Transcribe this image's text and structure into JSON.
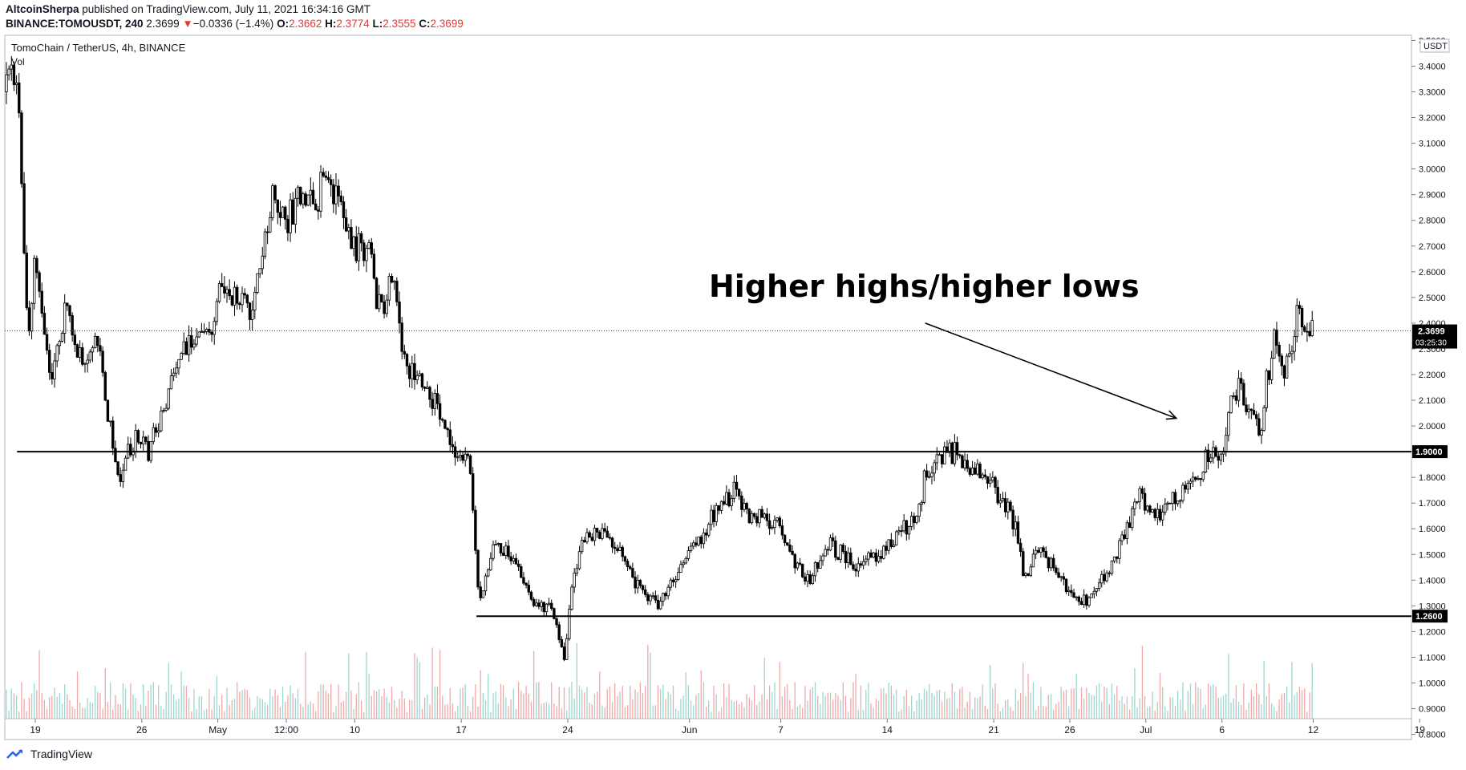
{
  "header": {
    "author": "AltcoinSherpa",
    "published_text": "published on TradingView.com, July 11, 2021 16:34:16 GMT",
    "symbol": "BINANCE:TOMOUSDT, 240",
    "last": "2.3699",
    "change_arrow": "▼",
    "change": "−0.0336 (−1.4%)",
    "o_label": "O:",
    "o_value": "2.3662",
    "h_label": "H:",
    "h_value": "2.3774",
    "l_label": "L:",
    "l_value": "2.3555",
    "c_label": "C:",
    "c_value": "2.3699"
  },
  "footer": {
    "brand": "TradingView"
  },
  "chart_data": {
    "type": "candlestick",
    "title": "TomoChain / TetherUS, 4h, BINANCE",
    "volume_label": "Vol",
    "currency_label": "USDT",
    "y_axis": {
      "ylim": [
        0.78,
        3.52
      ],
      "ticks": [
        "3.5000",
        "3.4000",
        "3.3000",
        "3.2000",
        "3.1000",
        "3.0000",
        "2.9000",
        "2.8000",
        "2.7000",
        "2.6000",
        "2.5000",
        "2.4000",
        "2.3000",
        "2.2000",
        "2.1000",
        "2.0000",
        "1.9000",
        "1.8000",
        "1.7000",
        "1.6000",
        "1.5000",
        "1.4000",
        "1.3000",
        "1.2000",
        "1.1000",
        "1.0000",
        "0.9000",
        "0.8000"
      ]
    },
    "x_axis": {
      "ticks": [
        {
          "label": "19",
          "day": 0
        },
        {
          "label": "26",
          "day": 7
        },
        {
          "label": "May",
          "day": 12
        },
        {
          "label": "12:00",
          "day": 16.5
        },
        {
          "label": "10",
          "day": 21
        },
        {
          "label": "17",
          "day": 28
        },
        {
          "label": "24",
          "day": 35
        },
        {
          "label": "Jun",
          "day": 43
        },
        {
          "label": "7",
          "day": 49
        },
        {
          "label": "14",
          "day": 56
        },
        {
          "label": "21",
          "day": 63
        },
        {
          "label": "26",
          "day": 68
        },
        {
          "label": "Jul",
          "day": 73
        },
        {
          "label": "6",
          "day": 78
        },
        {
          "label": "12",
          "day": 84
        },
        {
          "label": "19",
          "day": 91
        }
      ]
    },
    "price_path": [
      [
        -1.9,
        3.3
      ],
      [
        -1.5,
        3.38
      ],
      [
        -1.0,
        3.2
      ],
      [
        -0.7,
        2.55
      ],
      [
        -0.4,
        2.4
      ],
      [
        0.0,
        2.7
      ],
      [
        0.5,
        2.45
      ],
      [
        1.0,
        2.2
      ],
      [
        2.0,
        2.45
      ],
      [
        3.0,
        2.25
      ],
      [
        4.0,
        2.35
      ],
      [
        5.0,
        1.95
      ],
      [
        5.5,
        1.8
      ],
      [
        6.5,
        1.95
      ],
      [
        7.5,
        1.9
      ],
      [
        8.5,
        2.1
      ],
      [
        9.5,
        2.25
      ],
      [
        10.5,
        2.35
      ],
      [
        11.5,
        2.35
      ],
      [
        12.3,
        2.55
      ],
      [
        13.0,
        2.5
      ],
      [
        14.0,
        2.45
      ],
      [
        14.8,
        2.6
      ],
      [
        15.5,
        2.9
      ],
      [
        16.5,
        2.8
      ],
      [
        17.5,
        2.9
      ],
      [
        18.5,
        2.85
      ],
      [
        19.0,
        3.0
      ],
      [
        20.0,
        2.85
      ],
      [
        21.0,
        2.7
      ],
      [
        22.0,
        2.7
      ],
      [
        22.5,
        2.45
      ],
      [
        23.5,
        2.55
      ],
      [
        24.5,
        2.2
      ],
      [
        25.5,
        2.2
      ],
      [
        26.5,
        2.05
      ],
      [
        27.5,
        1.9
      ],
      [
        28.5,
        1.9
      ],
      [
        29.0,
        1.45
      ],
      [
        29.3,
        1.3
      ],
      [
        30.0,
        1.52
      ],
      [
        31.0,
        1.52
      ],
      [
        32.0,
        1.4
      ],
      [
        33.0,
        1.28
      ],
      [
        34.0,
        1.3
      ],
      [
        34.8,
        1.08
      ],
      [
        35.3,
        1.4
      ],
      [
        36.0,
        1.55
      ],
      [
        37.0,
        1.6
      ],
      [
        38.0,
        1.55
      ],
      [
        39.0,
        1.45
      ],
      [
        40.0,
        1.33
      ],
      [
        41.0,
        1.3
      ],
      [
        42.0,
        1.42
      ],
      [
        43.0,
        1.5
      ],
      [
        44.5,
        1.65
      ],
      [
        46.0,
        1.75
      ],
      [
        47.0,
        1.65
      ],
      [
        48.0,
        1.65
      ],
      [
        49.0,
        1.6
      ],
      [
        50.0,
        1.45
      ],
      [
        51.0,
        1.4
      ],
      [
        52.0,
        1.55
      ],
      [
        53.0,
        1.5
      ],
      [
        54.0,
        1.45
      ],
      [
        55.0,
        1.5
      ],
      [
        56.0,
        1.52
      ],
      [
        57.0,
        1.6
      ],
      [
        58.0,
        1.65
      ],
      [
        58.5,
        1.82
      ],
      [
        59.5,
        1.88
      ],
      [
        60.5,
        1.9
      ],
      [
        61.5,
        1.82
      ],
      [
        62.5,
        1.8
      ],
      [
        63.5,
        1.72
      ],
      [
        64.5,
        1.6
      ],
      [
        65.0,
        1.4
      ],
      [
        65.8,
        1.52
      ],
      [
        66.5,
        1.48
      ],
      [
        67.5,
        1.4
      ],
      [
        68.5,
        1.3
      ],
      [
        69.5,
        1.35
      ],
      [
        70.5,
        1.42
      ],
      [
        71.5,
        1.55
      ],
      [
        72.5,
        1.75
      ],
      [
        73.5,
        1.65
      ],
      [
        74.5,
        1.7
      ],
      [
        75.5,
        1.75
      ],
      [
        76.5,
        1.8
      ],
      [
        77.0,
        1.9
      ],
      [
        78.0,
        1.88
      ],
      [
        78.5,
        2.05
      ],
      [
        79.0,
        2.15
      ],
      [
        80.0,
        2.05
      ],
      [
        80.5,
        1.95
      ],
      [
        81.0,
        2.2
      ],
      [
        81.5,
        2.35
      ],
      [
        82.0,
        2.2
      ],
      [
        82.5,
        2.3
      ],
      [
        83.0,
        2.45
      ],
      [
        83.6,
        2.35
      ],
      [
        84.0,
        2.37
      ]
    ],
    "horizontal_levels": [
      {
        "value": 1.9,
        "label": "1.9000",
        "from_day": -1.2
      },
      {
        "value": 1.26,
        "label": "1.2600",
        "from_day": 29.0
      }
    ],
    "last_price": {
      "label": "2.3699",
      "countdown": "03:25:30",
      "value": 2.3699
    },
    "annotation": {
      "text": "Higher highs/higher lows",
      "arrow_from": [
        58.5,
        2.4
      ],
      "arrow_to": [
        75.0,
        2.03
      ]
    }
  }
}
